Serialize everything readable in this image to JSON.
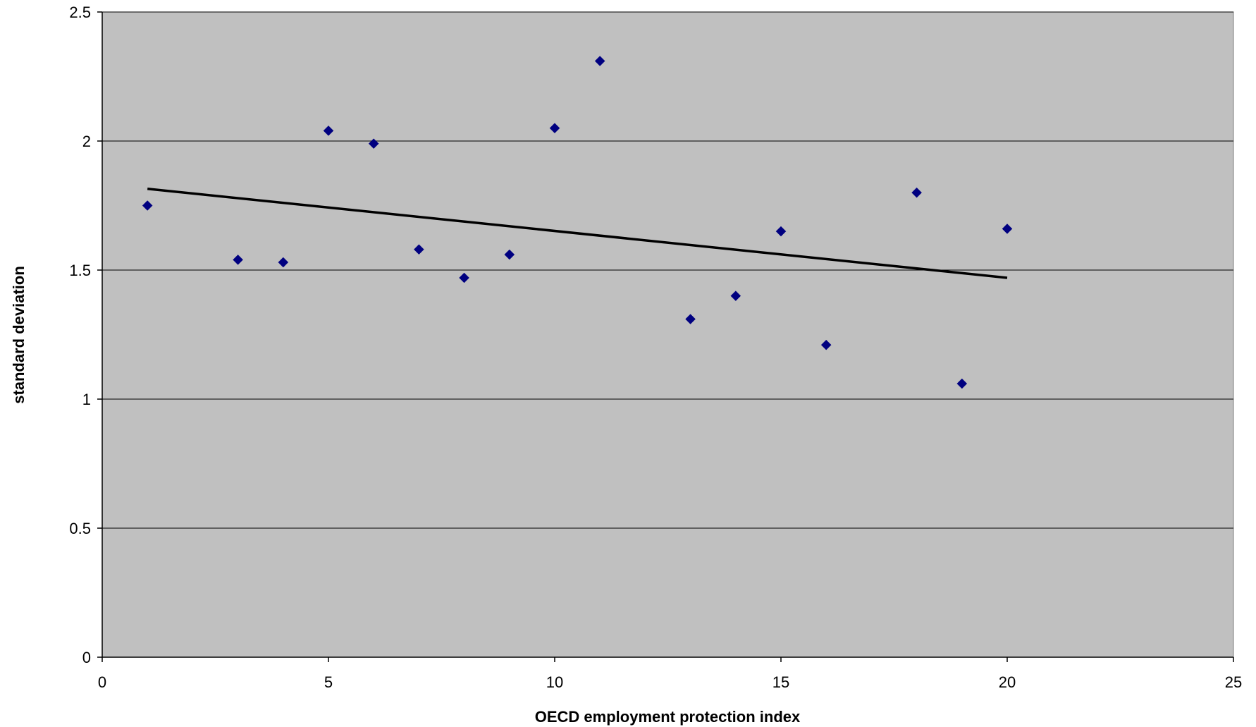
{
  "chart_data": {
    "type": "scatter",
    "title": "",
    "xlabel": "OECD employment protection index",
    "ylabel": "standard deviation",
    "xlim": [
      0,
      25
    ],
    "ylim": [
      0,
      2.5
    ],
    "xticks": [
      0,
      5,
      10,
      15,
      20,
      25
    ],
    "xtick_labels": [
      "0",
      "5",
      "10",
      "15",
      "20",
      "25"
    ],
    "yticks": [
      0,
      0.5,
      1,
      1.5,
      2,
      2.5
    ],
    "ytick_labels": [
      "0",
      "0.5",
      "1",
      "1.5",
      "2",
      "2.5"
    ],
    "grid": "horizontal",
    "legend": "none",
    "plot_background": "#c0c0c0",
    "series": [
      {
        "marker": "diamond",
        "color": "#000080",
        "points": [
          {
            "x": 1,
            "y": 1.75
          },
          {
            "x": 3,
            "y": 1.54
          },
          {
            "x": 4,
            "y": 1.53
          },
          {
            "x": 5,
            "y": 2.04
          },
          {
            "x": 6,
            "y": 1.99
          },
          {
            "x": 7,
            "y": 1.58
          },
          {
            "x": 8,
            "y": 1.47
          },
          {
            "x": 9,
            "y": 1.56
          },
          {
            "x": 10,
            "y": 2.05
          },
          {
            "x": 11,
            "y": 2.31
          },
          {
            "x": 13,
            "y": 1.31
          },
          {
            "x": 14,
            "y": 1.4
          },
          {
            "x": 15,
            "y": 1.65
          },
          {
            "x": 16,
            "y": 1.21
          },
          {
            "x": 18,
            "y": 1.8
          },
          {
            "x": 19,
            "y": 1.06
          },
          {
            "x": 20,
            "y": 1.66
          }
        ]
      }
    ],
    "trendline": {
      "type": "linear",
      "color": "#000000",
      "x": [
        1,
        20
      ],
      "y": [
        1.815,
        1.47
      ]
    }
  }
}
